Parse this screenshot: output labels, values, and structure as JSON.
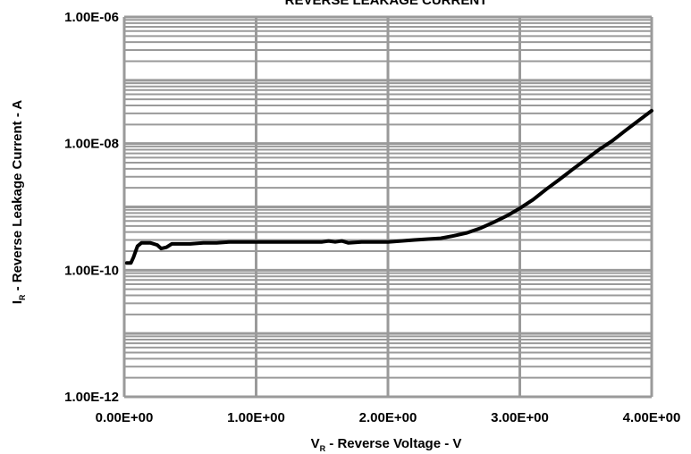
{
  "chart_data": {
    "type": "line",
    "title": "REVERSE LEAKAGE CURRENT",
    "xlabel": {
      "main": "V",
      "sub": "R",
      "rest": " - Reverse Voltage - V"
    },
    "ylabel": {
      "main": "I",
      "sub": "R",
      "rest": " - Reverse Leakage Current - A"
    },
    "xlim": [
      0,
      4
    ],
    "ylim": [
      1e-12,
      1e-06
    ],
    "y_scale": "log",
    "grid": true,
    "x_ticks": [
      0,
      1,
      2,
      3,
      4
    ],
    "x_tick_labels": [
      "0.00E+00",
      "1.00E+00",
      "2.00E+00",
      "3.00E+00",
      "4.00E+00"
    ],
    "y_ticks": [
      1e-12,
      1e-10,
      1e-08,
      1e-06
    ],
    "y_tick_labels": [
      "1.00E-12",
      "1.00E-10",
      "1.00E-08",
      "1.00E-06"
    ],
    "series": [
      {
        "color": "#000000",
        "x": [
          0.02,
          0.05,
          0.07,
          0.1,
          0.13,
          0.17,
          0.2,
          0.25,
          0.28,
          0.32,
          0.36,
          0.4,
          0.45,
          0.5,
          0.6,
          0.7,
          0.8,
          1.0,
          1.2,
          1.4,
          1.5,
          1.55,
          1.6,
          1.65,
          1.7,
          1.8,
          2.0,
          2.2,
          2.4,
          2.5,
          2.6,
          2.7,
          2.8,
          2.9,
          3.0,
          3.1,
          3.2,
          3.3,
          3.4,
          3.5,
          3.6,
          3.7,
          3.8,
          3.9,
          4.0
        ],
        "y": [
          1.3e-10,
          1.3e-10,
          1.6e-10,
          2.4e-10,
          2.7e-10,
          2.7e-10,
          2.7e-10,
          2.5e-10,
          2.2e-10,
          2.3e-10,
          2.6e-10,
          2.6e-10,
          2.6e-10,
          2.6e-10,
          2.7e-10,
          2.7e-10,
          2.8e-10,
          2.8e-10,
          2.8e-10,
          2.8e-10,
          2.8e-10,
          2.9e-10,
          2.8e-10,
          2.9e-10,
          2.7e-10,
          2.8e-10,
          2.8e-10,
          3e-10,
          3.2e-10,
          3.5e-10,
          3.9e-10,
          4.6e-10,
          5.7e-10,
          7.2e-10,
          9.5e-10,
          1.3e-09,
          1.9e-09,
          2.7e-09,
          3.9e-09,
          5.6e-09,
          8e-09,
          1.1e-08,
          1.6e-08,
          2.3e-08,
          3.3e-08
        ]
      }
    ]
  }
}
